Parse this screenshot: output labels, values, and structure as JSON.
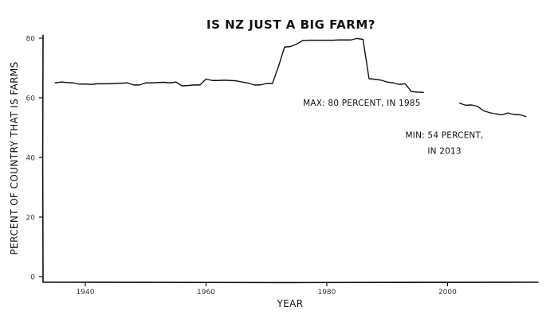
{
  "chart_data": {
    "type": "line",
    "title": "IS NZ JUST A BIG FARM?",
    "xlabel": "YEAR",
    "ylabel": "PERCENT OF COUNTRY THAT IS FARMS",
    "xlim": [
      1933,
      2015
    ],
    "ylim": [
      0,
      82
    ],
    "xticks": [
      1940,
      1960,
      1980,
      2000
    ],
    "yticks": [
      0,
      20,
      40,
      60,
      80
    ],
    "xtick_labels": [
      "1940",
      "1960",
      "1980",
      "2000"
    ],
    "ytick_labels": [
      "0",
      "20",
      "40",
      "60",
      "80"
    ],
    "grid": false,
    "series": [
      {
        "color": "#111111",
        "segments": [
          [
            {
              "x": 1935,
              "y": 65.0
            },
            {
              "x": 1936,
              "y": 65.3
            },
            {
              "x": 1937,
              "y": 65.1
            },
            {
              "x": 1938,
              "y": 65.0
            },
            {
              "x": 1939,
              "y": 64.6
            },
            {
              "x": 1940,
              "y": 64.6
            },
            {
              "x": 1941,
              "y": 64.5
            },
            {
              "x": 1942,
              "y": 64.7
            },
            {
              "x": 1943,
              "y": 64.7
            },
            {
              "x": 1944,
              "y": 64.7
            },
            {
              "x": 1945,
              "y": 64.8
            },
            {
              "x": 1946,
              "y": 64.9
            },
            {
              "x": 1947,
              "y": 65.0
            },
            {
              "x": 1948,
              "y": 64.3
            },
            {
              "x": 1949,
              "y": 64.3
            },
            {
              "x": 1950,
              "y": 65.0
            },
            {
              "x": 1951,
              "y": 65.0
            },
            {
              "x": 1952,
              "y": 65.1
            },
            {
              "x": 1953,
              "y": 65.2
            },
            {
              "x": 1954,
              "y": 65.0
            },
            {
              "x": 1955,
              "y": 65.3
            },
            {
              "x": 1956,
              "y": 64.0
            },
            {
              "x": 1957,
              "y": 64.1
            },
            {
              "x": 1958,
              "y": 64.3
            },
            {
              "x": 1959,
              "y": 64.3
            },
            {
              "x": 1960,
              "y": 66.3
            },
            {
              "x": 1961,
              "y": 65.8
            },
            {
              "x": 1962,
              "y": 65.8
            },
            {
              "x": 1963,
              "y": 65.9
            },
            {
              "x": 1964,
              "y": 65.8
            },
            {
              "x": 1965,
              "y": 65.7
            },
            {
              "x": 1966,
              "y": 65.3
            },
            {
              "x": 1967,
              "y": 64.9
            },
            {
              "x": 1968,
              "y": 64.3
            },
            {
              "x": 1969,
              "y": 64.3
            },
            {
              "x": 1970,
              "y": 64.8
            },
            {
              "x": 1971,
              "y": 64.8
            },
            {
              "x": 1972,
              "y": 70.5
            },
            {
              "x": 1973,
              "y": 77.0
            },
            {
              "x": 1974,
              "y": 77.2
            },
            {
              "x": 1975,
              "y": 78.0
            },
            {
              "x": 1976,
              "y": 79.2
            },
            {
              "x": 1977,
              "y": 79.3
            },
            {
              "x": 1978,
              "y": 79.3
            },
            {
              "x": 1979,
              "y": 79.3
            },
            {
              "x": 1980,
              "y": 79.3
            },
            {
              "x": 1981,
              "y": 79.3
            },
            {
              "x": 1982,
              "y": 79.4
            },
            {
              "x": 1983,
              "y": 79.4
            },
            {
              "x": 1984,
              "y": 79.4
            },
            {
              "x": 1985,
              "y": 79.9
            },
            {
              "x": 1986,
              "y": 79.6
            },
            {
              "x": 1987,
              "y": 66.4
            },
            {
              "x": 1988,
              "y": 66.2
            },
            {
              "x": 1989,
              "y": 65.9
            },
            {
              "x": 1990,
              "y": 65.3
            },
            {
              "x": 1991,
              "y": 65.0
            },
            {
              "x": 1992,
              "y": 64.5
            },
            {
              "x": 1993,
              "y": 64.7
            },
            {
              "x": 1994,
              "y": 62.1
            },
            {
              "x": 1995,
              "y": 61.9
            },
            {
              "x": 1996,
              "y": 61.8
            }
          ],
          [
            {
              "x": 2002,
              "y": 58.2
            },
            {
              "x": 2003,
              "y": 57.5
            },
            {
              "x": 2004,
              "y": 57.6
            },
            {
              "x": 2005,
              "y": 57.1
            },
            {
              "x": 2006,
              "y": 55.6
            },
            {
              "x": 2007,
              "y": 55.0
            },
            {
              "x": 2008,
              "y": 54.6
            },
            {
              "x": 2009,
              "y": 54.3
            },
            {
              "x": 2010,
              "y": 54.9
            },
            {
              "x": 2011,
              "y": 54.4
            },
            {
              "x": 2012,
              "y": 54.3
            },
            {
              "x": 2013,
              "y": 53.7
            }
          ]
        ]
      }
    ],
    "annotations": [
      {
        "lines": [
          "MAX: 80 PERCENT, IN 1985"
        ],
        "x": 1985.8,
        "y": 57.3
      },
      {
        "lines": [
          "MIN: 54 PERCENT,",
          "IN 2013"
        ],
        "x": 1999.5,
        "y": 46.5
      }
    ]
  }
}
